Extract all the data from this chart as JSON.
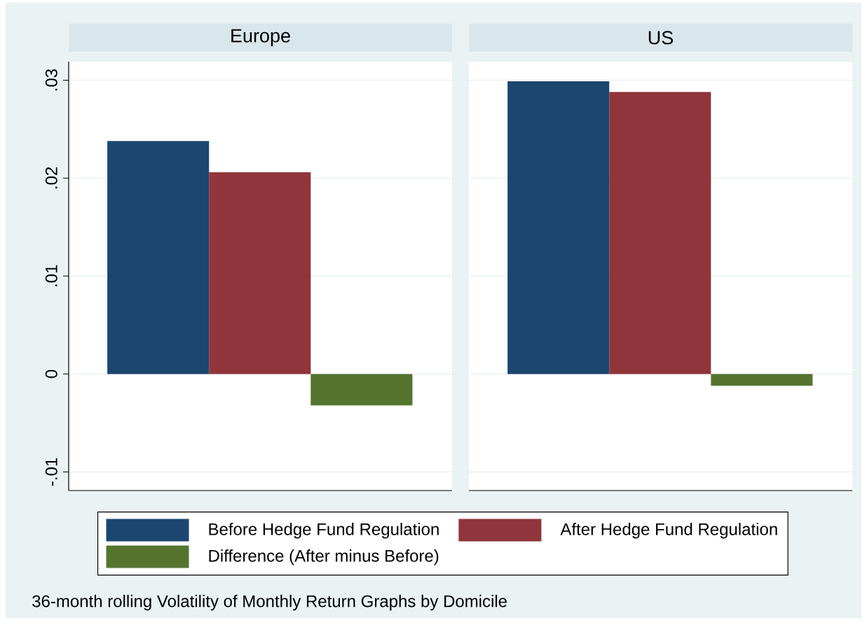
{
  "chart_data": {
    "type": "bar",
    "categories": [
      "Europe",
      "US"
    ],
    "series": [
      {
        "name": "Before Hedge Fund Regulation",
        "color": "#1b4670",
        "values": [
          0.0238,
          0.0299
        ]
      },
      {
        "name": "After Hedge Fund Regulation",
        "color": "#90353b",
        "values": [
          0.0206,
          0.0288
        ]
      },
      {
        "name": "Difference (After minus Before)",
        "color": "#55752f",
        "values": [
          -0.0032,
          -0.0012
        ]
      }
    ],
    "ylim": [
      -0.0119,
      0.0319
    ],
    "yticks": [
      {
        "value": -0.01,
        "label": "-.01"
      },
      {
        "value": 0,
        "label": "0"
      },
      {
        "value": 0.01,
        "label": ".01"
      },
      {
        "value": 0.02,
        "label": ".02"
      },
      {
        "value": 0.03,
        "label": ".03"
      }
    ],
    "grid": "y",
    "legend": "bottom",
    "annotations": [
      "36-month rolling Volatility of Monthly Return Graphs by Domicile"
    ]
  }
}
